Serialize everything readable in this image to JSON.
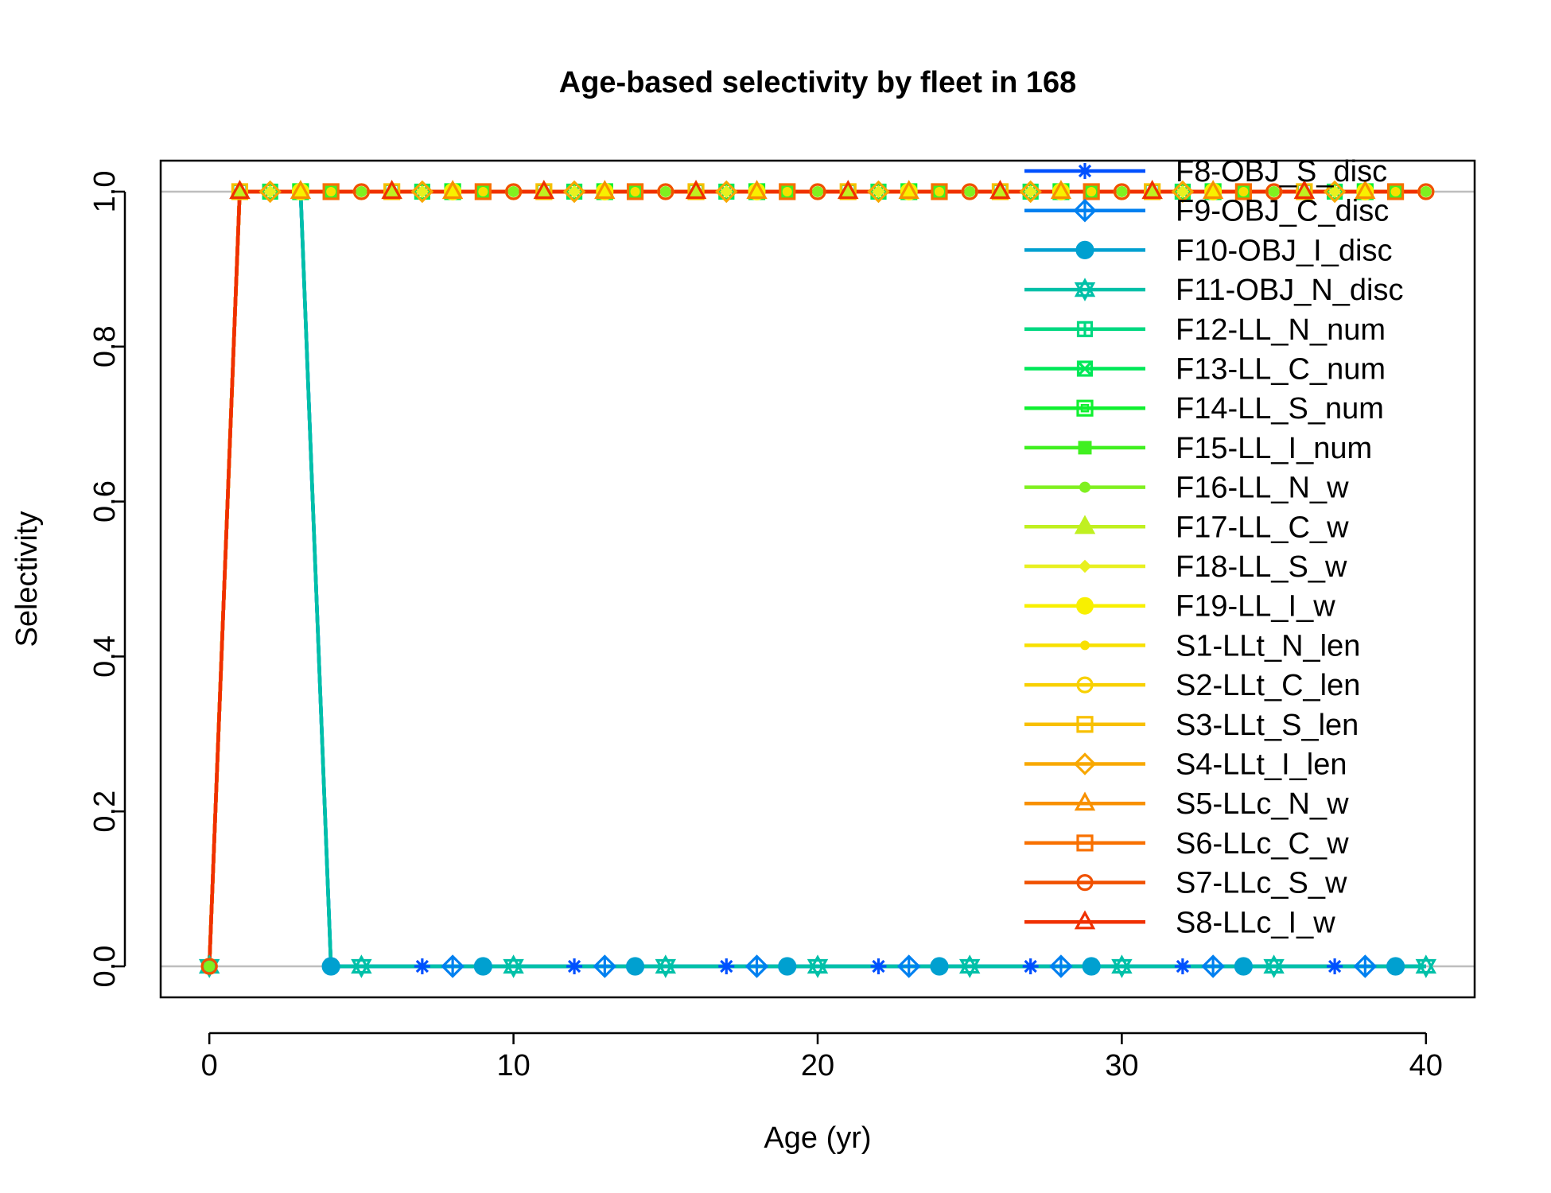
{
  "chart_data": {
    "type": "line",
    "title": "Age-based selectivity by fleet in 168",
    "xlabel": "Age (yr)",
    "ylabel": "Selectivity",
    "xlim": [
      -1.6,
      41.6
    ],
    "ylim": [
      -0.04,
      1.04
    ],
    "x_ticks": [
      0,
      10,
      20,
      30,
      40
    ],
    "x_tick_labels": [
      "0",
      "10",
      "20",
      "30",
      "40"
    ],
    "y_ticks": [
      0.0,
      0.2,
      0.4,
      0.6,
      0.8,
      1.0
    ],
    "y_tick_labels": [
      "0.0",
      "0.2",
      "0.4",
      "0.6",
      "0.8",
      "1.0"
    ],
    "reference_lines": [
      0,
      1
    ],
    "legend_position": "top-right",
    "series": [
      {
        "name": "F8-OBJ_S_disc",
        "color": "#0050ff",
        "marker": "asterisk",
        "pattern": "zero_from_4",
        "marker_ages": [
          7,
          12,
          17,
          22,
          27,
          32,
          37
        ]
      },
      {
        "name": "F9-OBJ_C_disc",
        "color": "#0080f0",
        "marker": "diamond-plus",
        "pattern": "zero_from_4",
        "marker_ages": [
          8,
          13,
          18,
          23,
          28,
          33,
          38
        ]
      },
      {
        "name": "F10-OBJ_I_disc",
        "color": "#00a0d0",
        "marker": "circle-plus",
        "pattern": "one_to_3",
        "marker_ages": [
          4,
          9,
          14,
          19,
          24,
          29,
          34,
          39
        ]
      },
      {
        "name": "F11-OBJ_N_disc",
        "color": "#00c0a8",
        "marker": "star-of-david",
        "pattern": "one_to_3",
        "marker_ages": [
          0,
          5,
          10,
          15,
          20,
          25,
          30,
          35,
          40
        ]
      },
      {
        "name": "F12-LL_N_num",
        "color": "#00d880",
        "marker": "square-plus",
        "pattern": "one_from_1",
        "marker_ages": [
          1,
          6,
          11,
          16,
          21,
          26,
          31,
          36
        ]
      },
      {
        "name": "F13-LL_C_num",
        "color": "#00e858",
        "marker": "square-x",
        "pattern": "one_from_1",
        "marker_ages": [
          2,
          7,
          12,
          17,
          22,
          27,
          32,
          37
        ]
      },
      {
        "name": "F14-LL_S_num",
        "color": "#10f030",
        "marker": "boxed-square",
        "pattern": "one_from_1",
        "marker_ages": [
          3,
          8,
          13,
          18,
          23,
          28,
          33,
          38
        ]
      },
      {
        "name": "F15-LL_I_num",
        "color": "#40f020",
        "marker": "filled-square",
        "pattern": "one_from_1",
        "marker_ages": [
          4,
          9,
          14,
          19,
          24,
          29,
          34,
          39
        ]
      },
      {
        "name": "F16-LL_N_w",
        "color": "#80f020",
        "marker": "filled-circle",
        "pattern": "one_from_1",
        "marker_ages": [
          0,
          5,
          10,
          15,
          20,
          25,
          30,
          35,
          40
        ]
      },
      {
        "name": "F17-LL_C_w",
        "color": "#c0f020",
        "marker": "filled-triangle",
        "pattern": "one_from_1",
        "marker_ages": [
          1,
          6,
          11,
          16,
          21,
          26,
          31,
          36
        ]
      },
      {
        "name": "F18-LL_S_w",
        "color": "#e8f020",
        "marker": "filled-diamond",
        "pattern": "one_from_1",
        "marker_ages": [
          2,
          7,
          12,
          17,
          22,
          27,
          32,
          37
        ]
      },
      {
        "name": "F19-LL_I_w",
        "color": "#f8f000",
        "marker": "big-dot",
        "pattern": "one_from_1",
        "marker_ages": [
          3,
          8,
          13,
          18,
          23,
          28,
          33,
          38
        ]
      },
      {
        "name": "S1-LLt_N_len",
        "color": "#f8e000",
        "marker": "small-dot",
        "pattern": "one_from_1",
        "marker_ages": [
          4,
          9,
          14,
          19,
          24,
          29,
          34,
          39
        ]
      },
      {
        "name": "S2-LLt_C_len",
        "color": "#f8d000",
        "marker": "open-circle",
        "pattern": "one_from_1",
        "marker_ages": [
          0,
          5,
          10,
          15,
          20,
          25,
          30,
          35,
          40
        ]
      },
      {
        "name": "S3-LLt_S_len",
        "color": "#f8c000",
        "marker": "open-square",
        "pattern": "one_from_1",
        "marker_ages": [
          1,
          6,
          11,
          16,
          21,
          26,
          31,
          36
        ]
      },
      {
        "name": "S4-LLt_I_len",
        "color": "#f8a800",
        "marker": "open-diamond",
        "pattern": "one_from_1",
        "marker_ages": [
          2,
          7,
          12,
          17,
          22,
          27,
          32,
          37
        ]
      },
      {
        "name": "S5-LLc_N_w",
        "color": "#f89000",
        "marker": "open-triangle",
        "pattern": "one_from_1",
        "marker_ages": [
          3,
          8,
          13,
          18,
          23,
          28,
          33,
          38
        ]
      },
      {
        "name": "S6-LLc_C_w",
        "color": "#f87000",
        "marker": "open-square",
        "pattern": "one_from_1",
        "marker_ages": [
          4,
          9,
          14,
          19,
          24,
          29,
          34,
          39
        ]
      },
      {
        "name": "S7-LLc_S_w",
        "color": "#f05000",
        "marker": "open-circle",
        "pattern": "one_from_1",
        "marker_ages": [
          0,
          5,
          10,
          15,
          20,
          25,
          30,
          35,
          40
        ]
      },
      {
        "name": "S8-LLc_I_w",
        "color": "#f03000",
        "marker": "open-triangle",
        "pattern": "one_from_1",
        "marker_ages": [
          1,
          6,
          11,
          16,
          21,
          26,
          31,
          36
        ]
      }
    ],
    "ages": [
      0,
      1,
      2,
      3,
      4,
      5,
      6,
      7,
      8,
      9,
      10,
      11,
      12,
      13,
      14,
      15,
      16,
      17,
      18,
      19,
      20,
      21,
      22,
      23,
      24,
      25,
      26,
      27,
      28,
      29,
      30,
      31,
      32,
      33,
      34,
      35,
      36,
      37,
      38,
      39,
      40
    ],
    "patterns": {
      "one_from_1": [
        0,
        1,
        1,
        1,
        1,
        1,
        1,
        1,
        1,
        1,
        1,
        1,
        1,
        1,
        1,
        1,
        1,
        1,
        1,
        1,
        1,
        1,
        1,
        1,
        1,
        1,
        1,
        1,
        1,
        1,
        1,
        1,
        1,
        1,
        1,
        1,
        1,
        1,
        1,
        1,
        1
      ],
      "one_to_3": [
        0,
        1,
        1,
        1,
        0,
        0,
        0,
        0,
        0,
        0,
        0,
        0,
        0,
        0,
        0,
        0,
        0,
        0,
        0,
        0,
        0,
        0,
        0,
        0,
        0,
        0,
        0,
        0,
        0,
        0,
        0,
        0,
        0,
        0,
        0,
        0,
        0,
        0,
        0,
        0,
        0
      ],
      "zero_from_4": [
        0,
        1,
        1,
        1,
        0,
        0,
        0,
        0,
        0,
        0,
        0,
        0,
        0,
        0,
        0,
        0,
        0,
        0,
        0,
        0,
        0,
        0,
        0,
        0,
        0,
        0,
        0,
        0,
        0,
        0,
        0,
        0,
        0,
        0,
        0,
        0,
        0,
        0,
        0,
        0,
        0
      ]
    }
  }
}
